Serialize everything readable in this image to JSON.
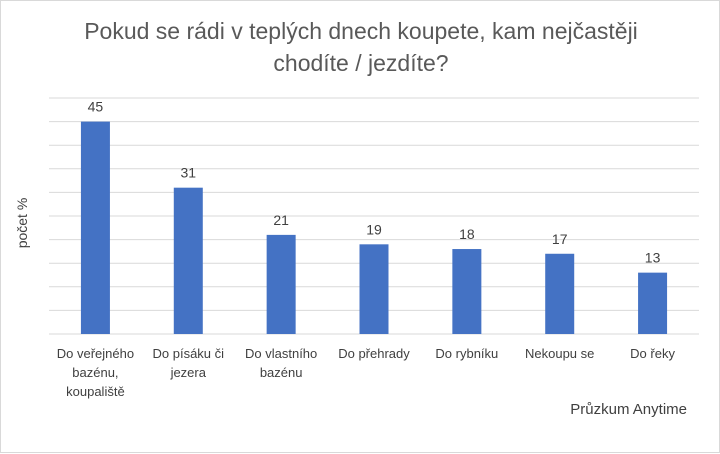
{
  "chart_data": {
    "type": "bar",
    "title": "Pokud se rádi v teplých dnech koupete, kam nejčastěji chodíte / jezdíte?",
    "ylabel": "počet %",
    "xlabel": "",
    "source": "Průzkum Anytime",
    "categories": [
      "Do veřejného bazénu, koupaliště",
      "Do písáku či jezera",
      "Do vlastního bazénu",
      "Do přehrady",
      "Do rybníku",
      "Nekoupu se",
      "Do řeky"
    ],
    "values": [
      45,
      31,
      21,
      19,
      18,
      17,
      13
    ],
    "ylim": [
      0,
      50
    ],
    "grid": true,
    "legend": "none",
    "colors": {
      "bar": "#4472c4",
      "grid": "#d9d9d9"
    }
  }
}
